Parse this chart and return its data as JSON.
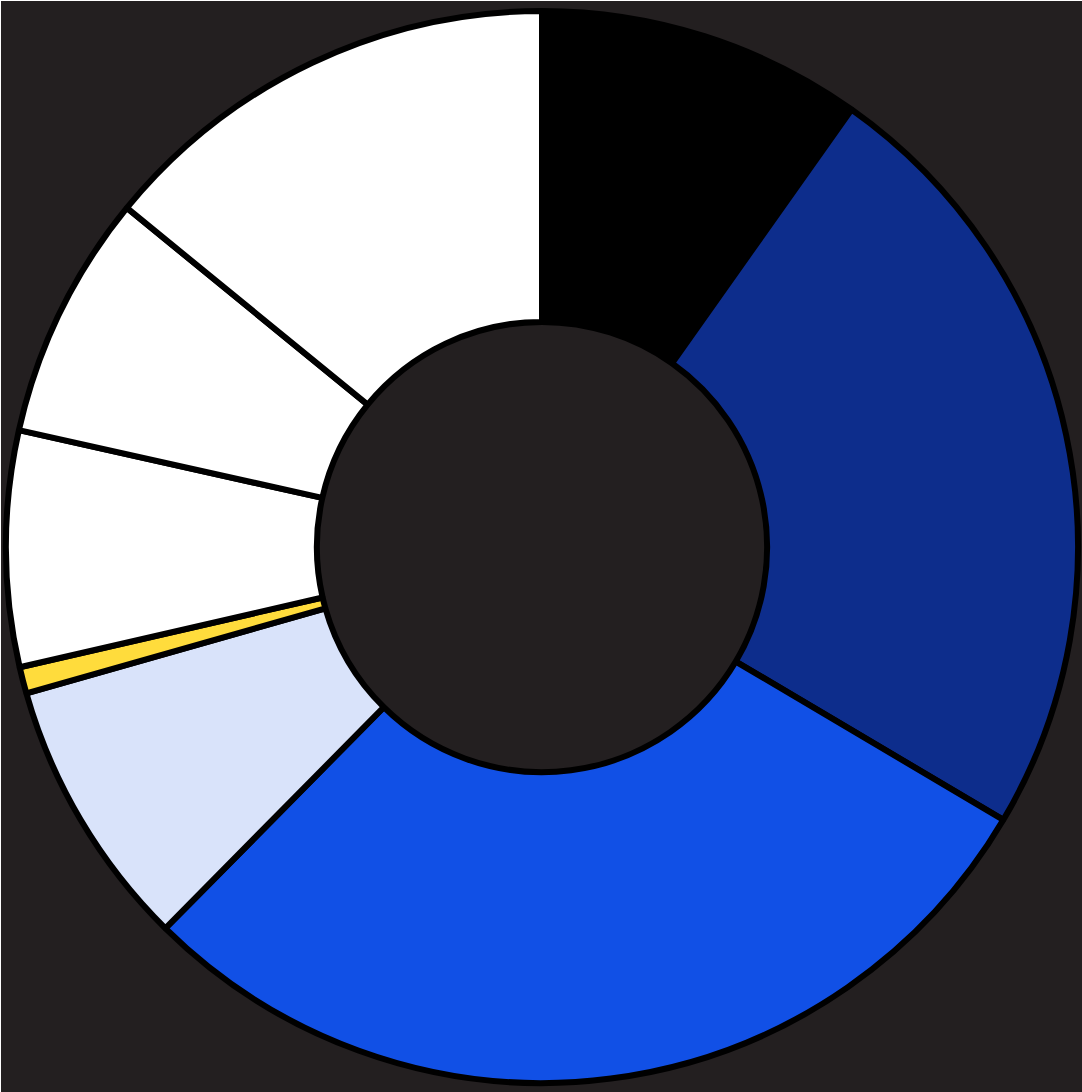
{
  "chart_data": {
    "type": "donut",
    "categories": [
      null,
      null,
      null,
      null,
      null,
      null,
      null,
      null
    ],
    "values": [
      9.8,
      23.7,
      28.9,
      8.2,
      0.8,
      7.1,
      7.4,
      14.1
    ],
    "colors": [
      "#000000",
      "#0d2d8c",
      "#1150e6",
      "#d9e3fa",
      "#ffdc3c",
      "#ffffff",
      "#ffffff",
      "#ffffff"
    ]
  }
}
